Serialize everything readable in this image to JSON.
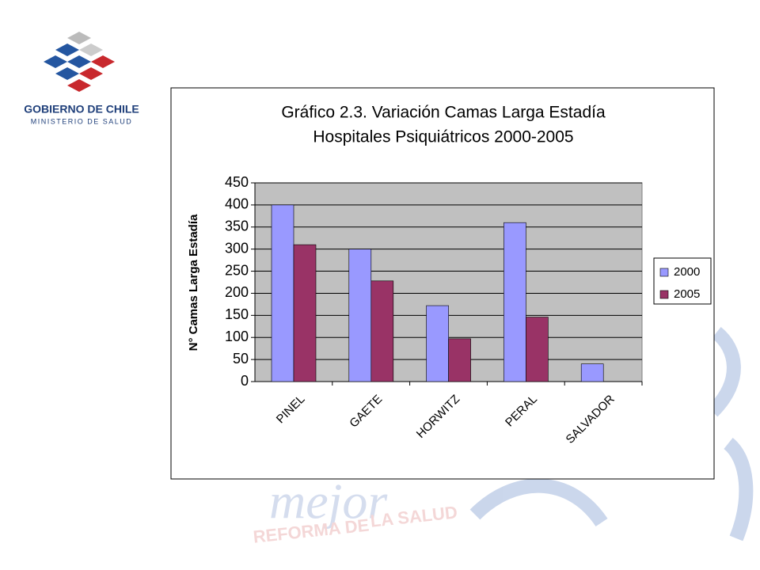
{
  "logo": {
    "name": "GOBIERNO DE CHILE",
    "ministry": "MINISTERIO DE SALUD"
  },
  "watermark": {
    "word": "mejor",
    "left": "REFORMA DE",
    "right": "LA SALUD"
  },
  "chart_data": {
    "type": "bar",
    "title": [
      "Gráfico 2.3. Variación Camas Larga Estadía",
      "Hospitales Psiquiátricos 2000-2005"
    ],
    "y_label": "N° Camas Larga Estadía",
    "categories": [
      "PINEL",
      "GAETE",
      "HORWITZ",
      "PERAL",
      "SALVADOR"
    ],
    "series": [
      {
        "name": "2000",
        "color": "#9999ff",
        "values": [
          400,
          300,
          172,
          360,
          40
        ]
      },
      {
        "name": "2005",
        "color": "#993366",
        "values": [
          310,
          228,
          97,
          146,
          null
        ]
      }
    ],
    "ylim": [
      0,
      450
    ],
    "yticks": [
      0,
      50,
      100,
      150,
      200,
      250,
      300,
      350,
      400,
      450
    ],
    "grid": true,
    "legend": "right",
    "plot_background": "#c0c0c0"
  }
}
